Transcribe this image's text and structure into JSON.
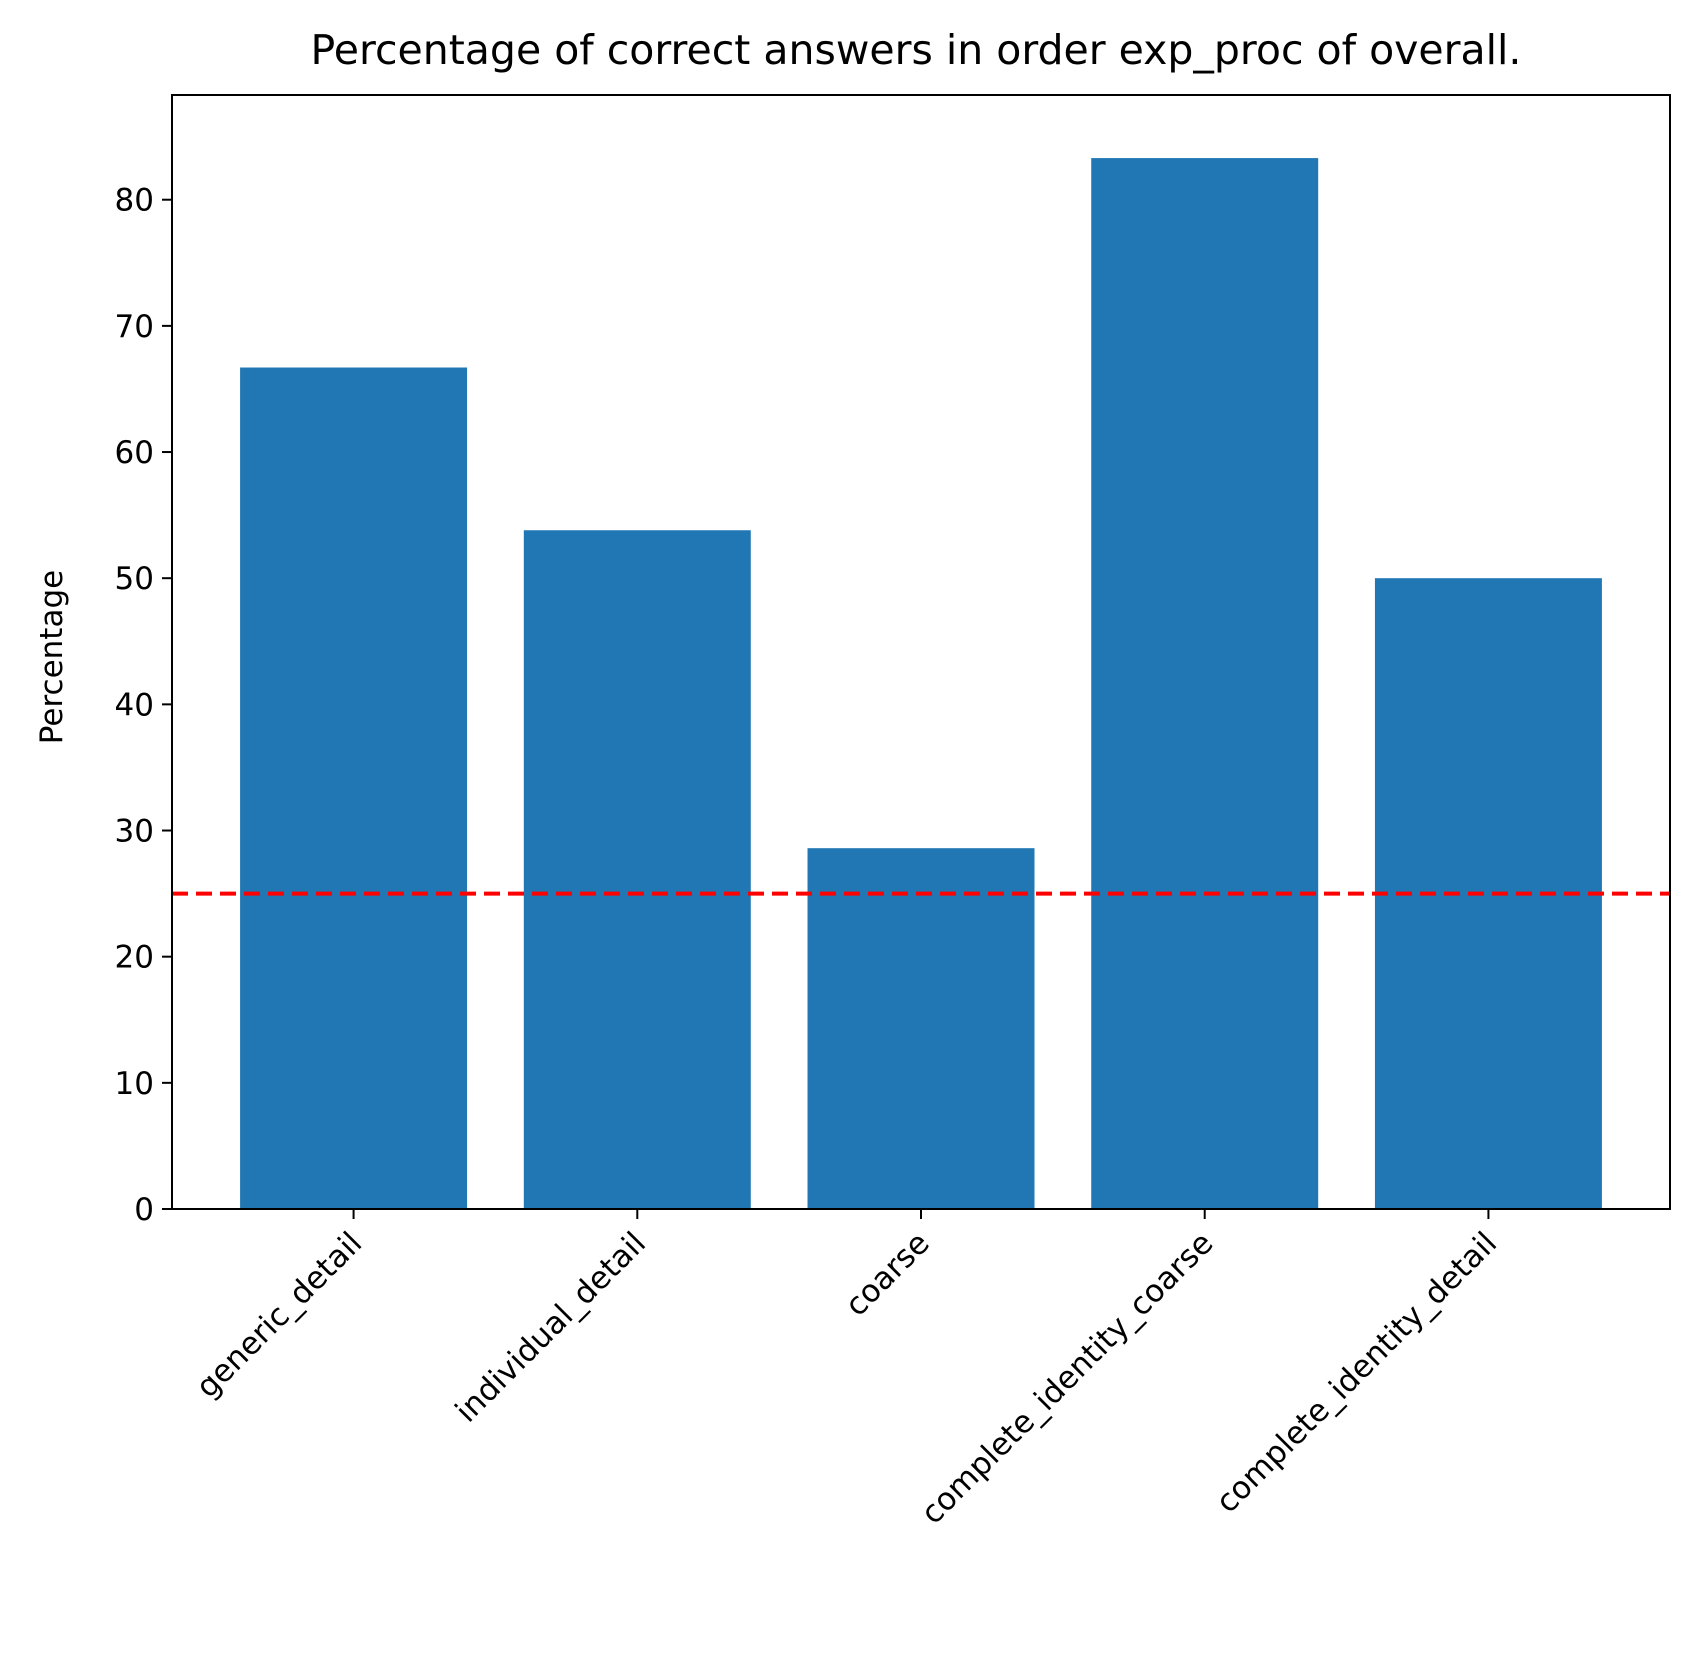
{
  "chart_data": {
    "type": "bar",
    "title": "Percentage of correct answers in order exp_proc of overall.",
    "xlabel": "",
    "ylabel": "Percentage",
    "categories": [
      "generic_detail",
      "individual_detail",
      "coarse",
      "complete_identity_coarse",
      "complete_identity_detail"
    ],
    "values": [
      66.7,
      53.8,
      28.6,
      83.3,
      50.0
    ],
    "yticks": [
      0,
      10,
      20,
      30,
      40,
      50,
      60,
      70,
      80
    ],
    "ylim": [
      0,
      88.3
    ],
    "bar_color": "#2077b4",
    "reference_line": {
      "y": 25,
      "color": "#ff0000",
      "style": "dashed"
    },
    "grid": false,
    "legend": "none"
  }
}
